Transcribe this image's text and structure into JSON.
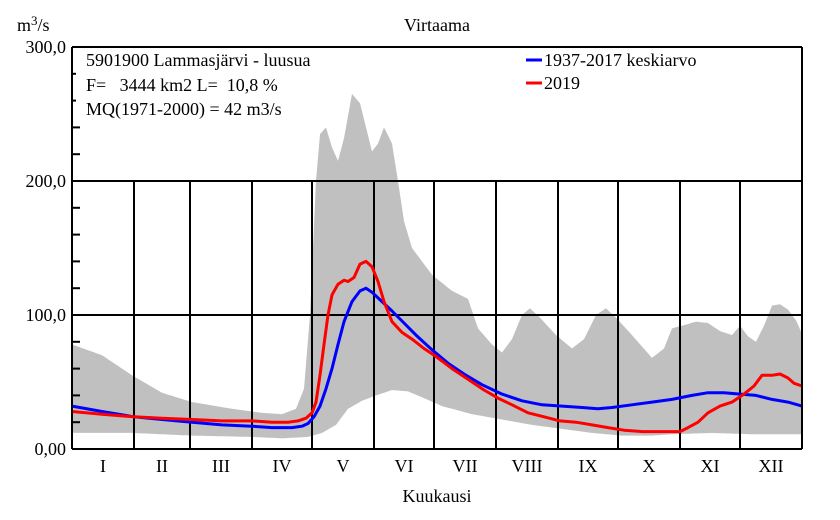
{
  "chart_data": {
    "type": "area",
    "title": "Virtaama",
    "ylabel": "m3/s",
    "xlabel": "Kuukausi",
    "ylim": [
      0,
      300
    ],
    "xlim_days": [
      0,
      365
    ],
    "grid": true,
    "yticks": [
      {
        "value": 0,
        "label": "0,00"
      },
      {
        "value": 100,
        "label": "100,0"
      },
      {
        "value": 200,
        "label": "200,0"
      },
      {
        "value": 300,
        "label": "300,0"
      }
    ],
    "minor_yticks": [
      20,
      40,
      60,
      80,
      120,
      140,
      160,
      180,
      220,
      240,
      260,
      280
    ],
    "months": [
      "I",
      "II",
      "III",
      "IV",
      "V",
      "VI",
      "VII",
      "VIII",
      "IX",
      "X",
      "XI",
      "XII"
    ],
    "month_boundaries_days": [
      31,
      59,
      90,
      120,
      151,
      181,
      212,
      243,
      273,
      304,
      334
    ],
    "info_lines": [
      "5901900 Lammasjärvi - luusua",
      "F=   3444 km2 L=  10,8 %",
      "MQ(1971-2000) = 42 m3/s"
    ],
    "legend_placement": "top-right",
    "envelope": {
      "name": "min-max range",
      "color": "#c0c0c0",
      "max": [
        [
          0,
          78
        ],
        [
          15,
          70
        ],
        [
          30,
          55
        ],
        [
          45,
          42
        ],
        [
          60,
          35
        ],
        [
          80,
          30
        ],
        [
          95,
          27
        ],
        [
          105,
          26
        ],
        [
          112,
          30
        ],
        [
          116,
          45
        ],
        [
          119,
          100
        ],
        [
          122,
          200
        ],
        [
          124,
          235
        ],
        [
          127,
          240
        ],
        [
          130,
          225
        ],
        [
          133,
          215
        ],
        [
          136,
          232
        ],
        [
          140,
          265
        ],
        [
          144,
          258
        ],
        [
          147,
          240
        ],
        [
          150,
          222
        ],
        [
          153,
          228
        ],
        [
          156,
          240
        ],
        [
          160,
          228
        ],
        [
          163,
          200
        ],
        [
          166,
          170
        ],
        [
          170,
          150
        ],
        [
          180,
          130
        ],
        [
          190,
          118
        ],
        [
          198,
          112
        ],
        [
          203,
          90
        ],
        [
          210,
          78
        ],
        [
          215,
          72
        ],
        [
          220,
          82
        ],
        [
          225,
          100
        ],
        [
          229,
          105
        ],
        [
          234,
          98
        ],
        [
          242,
          85
        ],
        [
          250,
          75
        ],
        [
          256,
          82
        ],
        [
          262,
          100
        ],
        [
          267,
          105
        ],
        [
          272,
          98
        ],
        [
          280,
          85
        ],
        [
          290,
          68
        ],
        [
          296,
          75
        ],
        [
          300,
          90
        ],
        [
          305,
          92
        ],
        [
          312,
          95
        ],
        [
          318,
          94
        ],
        [
          324,
          88
        ],
        [
          330,
          85
        ],
        [
          334,
          92
        ],
        [
          338,
          84
        ],
        [
          342,
          80
        ],
        [
          346,
          92
        ],
        [
          350,
          107
        ],
        [
          354,
          108
        ],
        [
          358,
          104
        ],
        [
          362,
          96
        ],
        [
          365,
          86
        ]
      ],
      "min": [
        [
          0,
          12
        ],
        [
          30,
          12
        ],
        [
          60,
          10
        ],
        [
          90,
          9
        ],
        [
          105,
          8
        ],
        [
          118,
          9
        ],
        [
          125,
          12
        ],
        [
          132,
          18
        ],
        [
          138,
          30
        ],
        [
          145,
          36
        ],
        [
          152,
          40
        ],
        [
          160,
          44
        ],
        [
          168,
          43
        ],
        [
          176,
          38
        ],
        [
          185,
          32
        ],
        [
          200,
          26
        ],
        [
          215,
          22
        ],
        [
          230,
          18
        ],
        [
          245,
          15
        ],
        [
          260,
          12
        ],
        [
          275,
          10
        ],
        [
          290,
          10
        ],
        [
          300,
          11
        ],
        [
          320,
          12
        ],
        [
          340,
          11
        ],
        [
          365,
          11
        ]
      ]
    },
    "series": [
      {
        "name": "1937-2017 keskiarvo",
        "color": "#0000ff",
        "points": [
          [
            0,
            32
          ],
          [
            15,
            28
          ],
          [
            31,
            24
          ],
          [
            45,
            22
          ],
          [
            60,
            20
          ],
          [
            75,
            18
          ],
          [
            90,
            17
          ],
          [
            100,
            16
          ],
          [
            110,
            16
          ],
          [
            115,
            17
          ],
          [
            118,
            19
          ],
          [
            121,
            24
          ],
          [
            124,
            32
          ],
          [
            127,
            45
          ],
          [
            130,
            60
          ],
          [
            133,
            78
          ],
          [
            136,
            95
          ],
          [
            140,
            110
          ],
          [
            144,
            118
          ],
          [
            147,
            120
          ],
          [
            150,
            117
          ],
          [
            155,
            110
          ],
          [
            160,
            103
          ],
          [
            166,
            94
          ],
          [
            172,
            85
          ],
          [
            180,
            74
          ],
          [
            188,
            64
          ],
          [
            196,
            56
          ],
          [
            205,
            48
          ],
          [
            215,
            41
          ],
          [
            225,
            36
          ],
          [
            235,
            33
          ],
          [
            245,
            32
          ],
          [
            255,
            31
          ],
          [
            263,
            30
          ],
          [
            270,
            31
          ],
          [
            280,
            33
          ],
          [
            290,
            35
          ],
          [
            300,
            37
          ],
          [
            310,
            40
          ],
          [
            318,
            42
          ],
          [
            326,
            42
          ],
          [
            334,
            41
          ],
          [
            342,
            40
          ],
          [
            350,
            37
          ],
          [
            358,
            35
          ],
          [
            365,
            32
          ]
        ]
      },
      {
        "name": "2019",
        "color": "#ff0000",
        "points": [
          [
            0,
            28
          ],
          [
            15,
            26
          ],
          [
            31,
            24
          ],
          [
            45,
            23
          ],
          [
            60,
            22
          ],
          [
            75,
            21
          ],
          [
            90,
            21
          ],
          [
            100,
            20
          ],
          [
            108,
            20
          ],
          [
            113,
            21
          ],
          [
            117,
            23
          ],
          [
            120,
            27
          ],
          [
            122,
            35
          ],
          [
            124,
            55
          ],
          [
            126,
            78
          ],
          [
            128,
            100
          ],
          [
            130,
            115
          ],
          [
            133,
            123
          ],
          [
            136,
            126
          ],
          [
            138,
            125
          ],
          [
            141,
            128
          ],
          [
            144,
            138
          ],
          [
            147,
            140
          ],
          [
            150,
            136
          ],
          [
            153,
            125
          ],
          [
            156,
            110
          ],
          [
            160,
            95
          ],
          [
            165,
            87
          ],
          [
            170,
            82
          ],
          [
            176,
            75
          ],
          [
            182,
            69
          ],
          [
            190,
            60
          ],
          [
            198,
            52
          ],
          [
            206,
            44
          ],
          [
            213,
            38
          ],
          [
            220,
            33
          ],
          [
            228,
            27
          ],
          [
            236,
            24
          ],
          [
            244,
            21
          ],
          [
            252,
            20
          ],
          [
            260,
            18
          ],
          [
            268,
            16
          ],
          [
            276,
            14
          ],
          [
            285,
            13
          ],
          [
            295,
            13
          ],
          [
            304,
            13
          ],
          [
            308,
            16
          ],
          [
            313,
            20
          ],
          [
            318,
            27
          ],
          [
            324,
            32
          ],
          [
            330,
            35
          ],
          [
            336,
            41
          ],
          [
            341,
            47
          ],
          [
            345,
            55
          ],
          [
            350,
            55
          ],
          [
            354,
            56
          ],
          [
            358,
            53
          ],
          [
            361,
            49
          ],
          [
            365,
            47
          ]
        ]
      }
    ]
  }
}
